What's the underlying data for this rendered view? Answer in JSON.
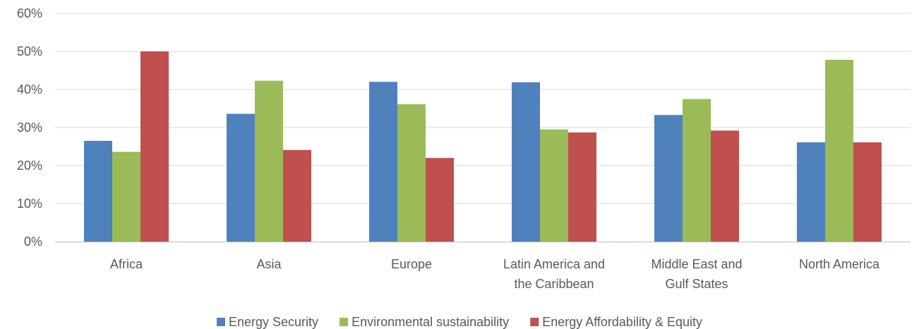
{
  "chart_data": {
    "type": "bar",
    "categories": [
      [
        "Africa"
      ],
      [
        "Asia"
      ],
      [
        "Europe"
      ],
      [
        "Latin America and",
        "the Caribbean"
      ],
      [
        "Middle East and",
        "Gulf States"
      ],
      [
        "North America"
      ]
    ],
    "series": [
      {
        "name": "Energy Security",
        "color": "#4F81BD",
        "values": [
          26.5,
          33.6,
          42.0,
          41.9,
          33.3,
          26.1
        ]
      },
      {
        "name": "Environmental sustainability",
        "color": "#9BBB59",
        "values": [
          23.6,
          42.3,
          36.1,
          29.5,
          37.5,
          47.8
        ]
      },
      {
        "name": "Energy Affordability & Equity",
        "color": "#C0504D",
        "values": [
          50.0,
          24.1,
          22.0,
          28.7,
          29.2,
          26.1
        ]
      }
    ],
    "y_ticks": [
      "0%",
      "10%",
      "20%",
      "30%",
      "40%",
      "50%",
      "60%"
    ],
    "ylim": [
      0,
      60
    ],
    "grid": true,
    "legend_position": "bottom",
    "gridline_color": "#d9d9d9",
    "axis_color": "#bfbfbf"
  }
}
